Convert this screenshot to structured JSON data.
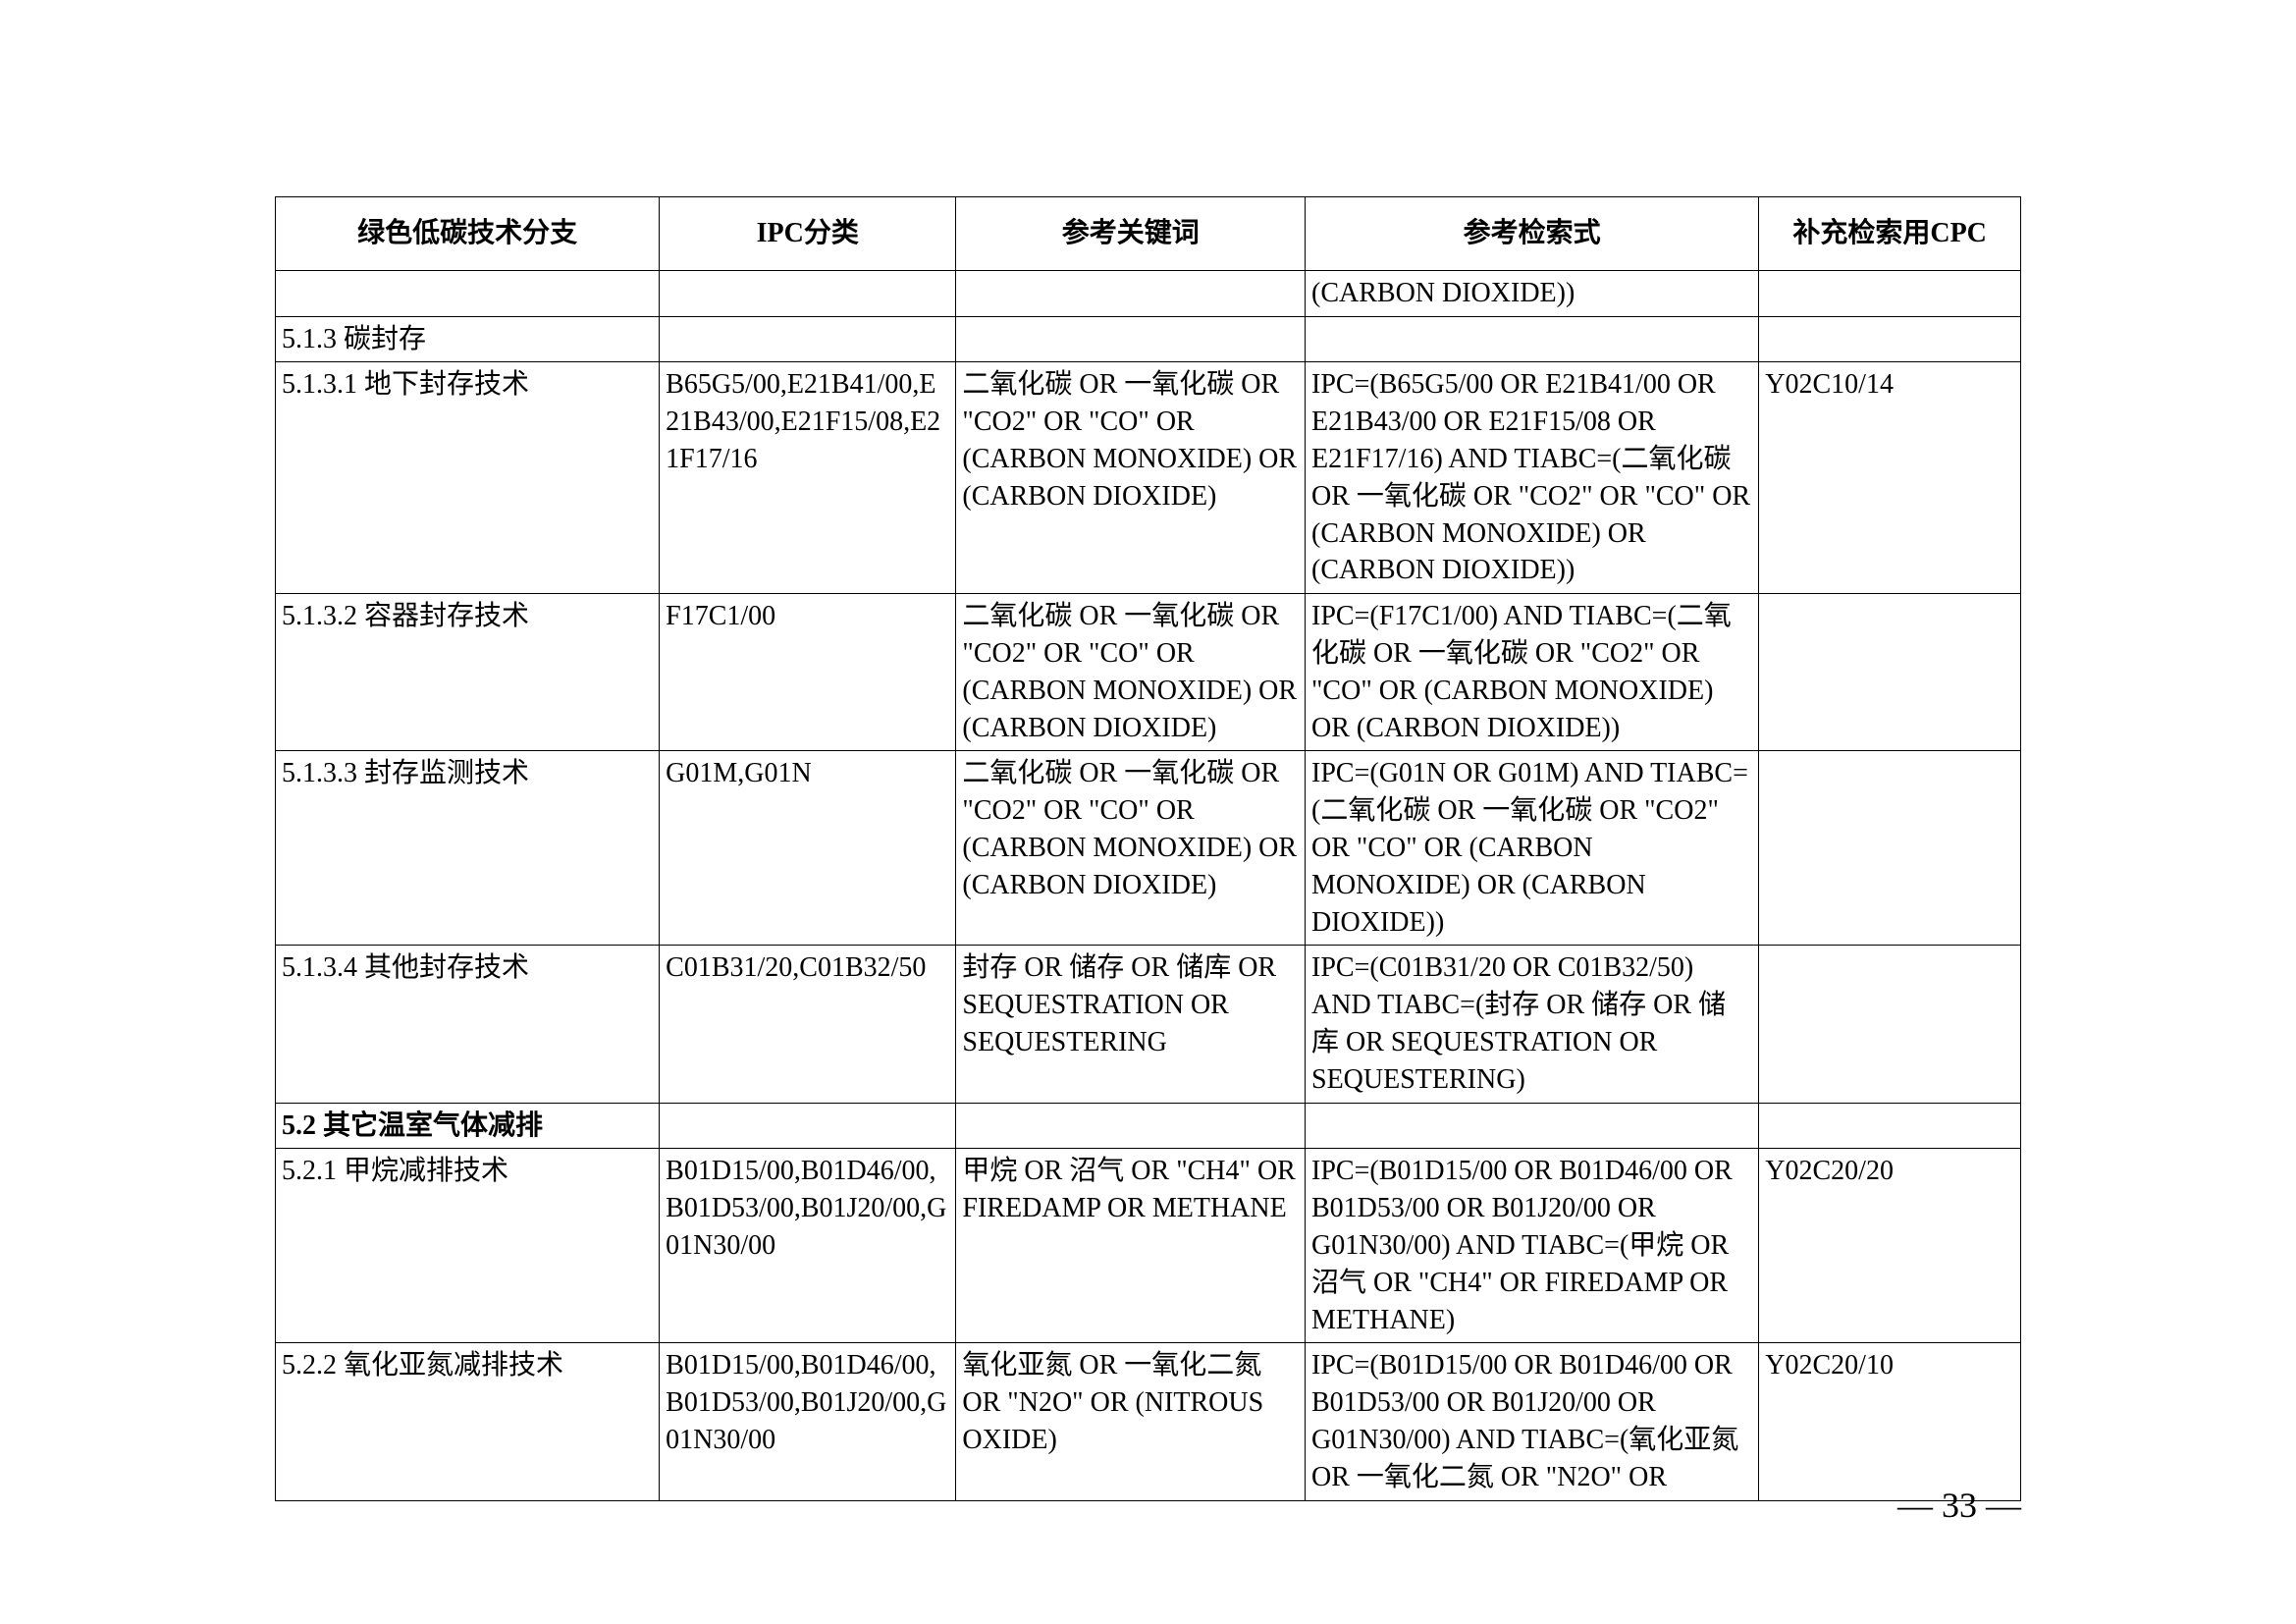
{
  "table": {
    "columns": [
      "绿色低碳技术分支",
      "IPC分类",
      "参考关键词",
      "参考检索式",
      "补充检索用CPC"
    ],
    "column_alignments": [
      "left",
      "left",
      "left",
      "left",
      "left"
    ],
    "border_color": "#000000",
    "font_size_pt": 14,
    "rows": [
      {
        "cells": [
          "",
          "",
          "",
          "(CARBON DIOXIDE))",
          ""
        ],
        "bold": false
      },
      {
        "cells": [
          "5.1.3 碳封存",
          "",
          "",
          "",
          ""
        ],
        "bold": false
      },
      {
        "cells": [
          "5.1.3.1 地下封存技术",
          "B65G5/00,E21B41/00,E21B43/00,E21F15/08,E21F17/16",
          "二氧化碳 OR 一氧化碳 OR \"CO2\" OR \"CO\" OR (CARBON MONOXIDE) OR (CARBON DIOXIDE)",
          "IPC=(B65G5/00 OR E21B41/00 OR E21B43/00 OR E21F15/08 OR E21F17/16) AND TIABC=(二氧化碳 OR 一氧化碳 OR \"CO2\" OR \"CO\" OR (CARBON MONOXIDE) OR (CARBON DIOXIDE))",
          "Y02C10/14"
        ],
        "bold": false
      },
      {
        "cells": [
          "5.1.3.2 容器封存技术",
          "F17C1/00",
          "二氧化碳 OR 一氧化碳 OR \"CO2\" OR \"CO\" OR (CARBON MONOXIDE) OR (CARBON DIOXIDE)",
          "IPC=(F17C1/00) AND TIABC=(二氧化碳 OR 一氧化碳 OR \"CO2\" OR \"CO\" OR (CARBON MONOXIDE) OR (CARBON DIOXIDE))",
          ""
        ],
        "bold": false
      },
      {
        "cells": [
          "5.1.3.3 封存监测技术",
          "G01M,G01N",
          "二氧化碳 OR 一氧化碳 OR \"CO2\" OR \"CO\" OR (CARBON MONOXIDE) OR (CARBON DIOXIDE)",
          "IPC=(G01N OR G01M) AND TIABC=(二氧化碳 OR 一氧化碳 OR \"CO2\" OR \"CO\" OR (CARBON MONOXIDE) OR (CARBON DIOXIDE))",
          ""
        ],
        "bold": false
      },
      {
        "cells": [
          "5.1.3.4 其他封存技术",
          "C01B31/20,C01B32/50",
          "封存 OR 储存 OR 储库 OR SEQUESTRATION OR SEQUESTERING",
          "IPC=(C01B31/20 OR C01B32/50) AND TIABC=(封存 OR 储存 OR 储库 OR SEQUESTRATION OR SEQUESTERING)",
          ""
        ],
        "bold": false
      },
      {
        "cells": [
          "5.2 其它温室气体减排",
          "",
          "",
          "",
          ""
        ],
        "bold": true
      },
      {
        "cells": [
          "5.2.1 甲烷减排技术",
          "B01D15/00,B01D46/00,B01D53/00,B01J20/00,G01N30/00",
          "甲烷 OR 沼气 OR \"CH4\" OR FIREDAMP OR METHANE",
          "IPC=(B01D15/00 OR B01D46/00 OR B01D53/00 OR B01J20/00 OR G01N30/00) AND TIABC=(甲烷 OR 沼气 OR \"CH4\" OR FIREDAMP OR METHANE)",
          "Y02C20/20"
        ],
        "bold": false
      },
      {
        "cells": [
          "5.2.2 氧化亚氮减排技术",
          "B01D15/00,B01D46/00,B01D53/00,B01J20/00,G01N30/00",
          "氧化亚氮 OR 一氧化二氮 OR \"N2O\" OR (NITROUS OXIDE)",
          "IPC=(B01D15/00 OR B01D46/00 OR B01D53/00 OR B01J20/00 OR G01N30/00) AND TIABC=(氧化亚氮 OR 一氧化二氮 OR \"N2O\" OR",
          "Y02C20/10"
        ],
        "bold": false
      }
    ]
  },
  "page_number": "— 33 —"
}
